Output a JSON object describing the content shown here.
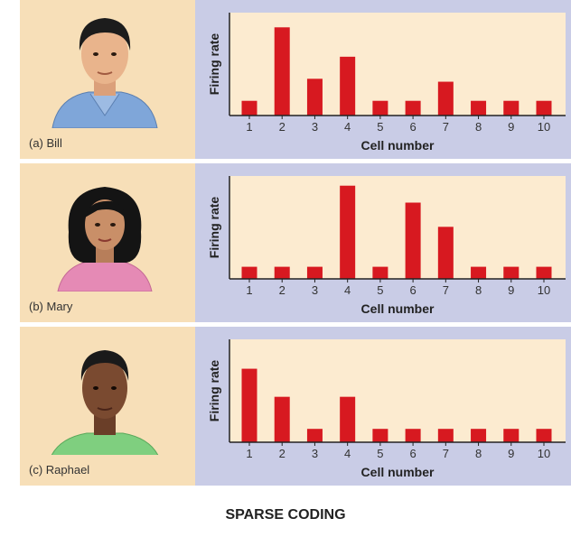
{
  "footer": {
    "title": "SPARSE CODING"
  },
  "chart_data": [
    {
      "type": "bar",
      "caption": "(a) Bill",
      "xlabel": "Cell number",
      "ylabel": "Firing rate",
      "categories": [
        "1",
        "2",
        "3",
        "4",
        "5",
        "6",
        "7",
        "8",
        "9",
        "10"
      ],
      "values": [
        1,
        6,
        2.5,
        4,
        1,
        1,
        2.3,
        1,
        1,
        1
      ],
      "ylim": [
        0,
        7
      ],
      "colors": {
        "bar": "#d71920",
        "plot_bg": "#fcebd0"
      }
    },
    {
      "type": "bar",
      "caption": "(b) Mary",
      "xlabel": "Cell number",
      "ylabel": "Firing rate",
      "categories": [
        "1",
        "2",
        "3",
        "4",
        "5",
        "6",
        "7",
        "8",
        "9",
        "10"
      ],
      "values": [
        1,
        1,
        1,
        7.7,
        1,
        6.3,
        4.3,
        1,
        1,
        1
      ],
      "ylim": [
        0,
        8.5
      ],
      "colors": {
        "bar": "#d71920",
        "plot_bg": "#fcebd0"
      }
    },
    {
      "type": "bar",
      "caption": "(c) Raphael",
      "xlabel": "Cell number",
      "ylabel": "Firing rate",
      "categories": [
        "1",
        "2",
        "3",
        "4",
        "5",
        "6",
        "7",
        "8",
        "9",
        "10"
      ],
      "values": [
        5.5,
        3.4,
        1,
        3.4,
        1,
        1,
        1,
        1,
        1,
        1
      ],
      "ylim": [
        0,
        7.7
      ],
      "colors": {
        "bar": "#d71920",
        "plot_bg": "#fcebd0"
      }
    }
  ],
  "portraits": [
    {
      "icon": "man-portrait-icon",
      "skin": "#e9b48c",
      "hair": "#1c1c1c",
      "shirt": "#7fa6d9"
    },
    {
      "icon": "woman-portrait-icon",
      "skin": "#c98f68",
      "hair": "#141414",
      "shirt": "#e58ab5"
    },
    {
      "icon": "man-portrait-icon",
      "skin": "#7a4a30",
      "hair": "#1a1a1a",
      "shirt": "#7fcf7f"
    }
  ]
}
